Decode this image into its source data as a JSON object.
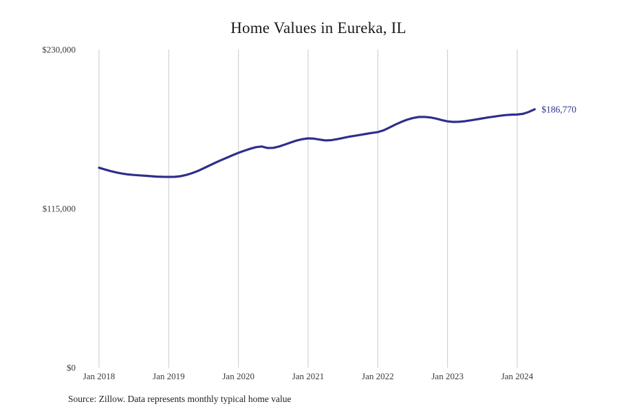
{
  "chart": {
    "title": "Home Values in Eureka, IL",
    "source_note": "Source: Zillow. Data represents monthly typical home value",
    "end_label": "$186,770",
    "colors": {
      "line": "#2e2e8c",
      "grid": "#c9c9c9",
      "tick_text": "#3a3a3a",
      "end_label_text": "#2e2e8c",
      "background": "#ffffff"
    }
  },
  "chart_data": {
    "type": "line",
    "title": "Home Values in Eureka, IL",
    "series_name": "Monthly typical home value",
    "legend": "none",
    "grid": "vertical-only",
    "ylim": [
      0,
      230000
    ],
    "y_ticks": [
      0,
      115000,
      230000
    ],
    "y_tick_labels": [
      "$0",
      "$115,000",
      "$230,000"
    ],
    "x_tick_labels": [
      "Jan 2018",
      "Jan 2019",
      "Jan 2020",
      "Jan 2021",
      "Jan 2022",
      "Jan 2023",
      "Jan 2024"
    ],
    "x": [
      "2018-01",
      "2018-02",
      "2018-03",
      "2018-04",
      "2018-05",
      "2018-06",
      "2018-07",
      "2018-08",
      "2018-09",
      "2018-10",
      "2018-11",
      "2018-12",
      "2019-01",
      "2019-02",
      "2019-03",
      "2019-04",
      "2019-05",
      "2019-06",
      "2019-07",
      "2019-08",
      "2019-09",
      "2019-10",
      "2019-11",
      "2019-12",
      "2020-01",
      "2020-02",
      "2020-03",
      "2020-04",
      "2020-05",
      "2020-06",
      "2020-07",
      "2020-08",
      "2020-09",
      "2020-10",
      "2020-11",
      "2020-12",
      "2021-01",
      "2021-02",
      "2021-03",
      "2021-04",
      "2021-05",
      "2021-06",
      "2021-07",
      "2021-08",
      "2021-09",
      "2021-10",
      "2021-11",
      "2021-12",
      "2022-01",
      "2022-02",
      "2022-03",
      "2022-04",
      "2022-05",
      "2022-06",
      "2022-07",
      "2022-08",
      "2022-09",
      "2022-10",
      "2022-11",
      "2022-12",
      "2023-01",
      "2023-02",
      "2023-03",
      "2023-04",
      "2023-05",
      "2023-06",
      "2023-07",
      "2023-08",
      "2023-09",
      "2023-10",
      "2023-11",
      "2023-12",
      "2024-01",
      "2024-02",
      "2024-03",
      "2024-04"
    ],
    "values": [
      144500,
      143300,
      142100,
      141100,
      140300,
      139700,
      139300,
      139000,
      138700,
      138400,
      138100,
      137950,
      137900,
      137950,
      138400,
      139300,
      140600,
      142200,
      144100,
      146100,
      148100,
      150000,
      151800,
      153600,
      155300,
      156800,
      158200,
      159400,
      159900,
      158800,
      158900,
      159900,
      161300,
      162800,
      164200,
      165200,
      165800,
      165600,
      164900,
      164300,
      164500,
      165200,
      166100,
      166900,
      167600,
      168300,
      169000,
      169700,
      170300,
      171600,
      173600,
      175700,
      177600,
      179200,
      180400,
      181200,
      181300,
      180900,
      180100,
      179000,
      178100,
      177700,
      177800,
      178200,
      178800,
      179500,
      180200,
      180900,
      181500,
      182100,
      182600,
      182900,
      183000,
      183500,
      184900,
      186770
    ],
    "final_value": 186770,
    "final_value_label": "$186,770"
  }
}
